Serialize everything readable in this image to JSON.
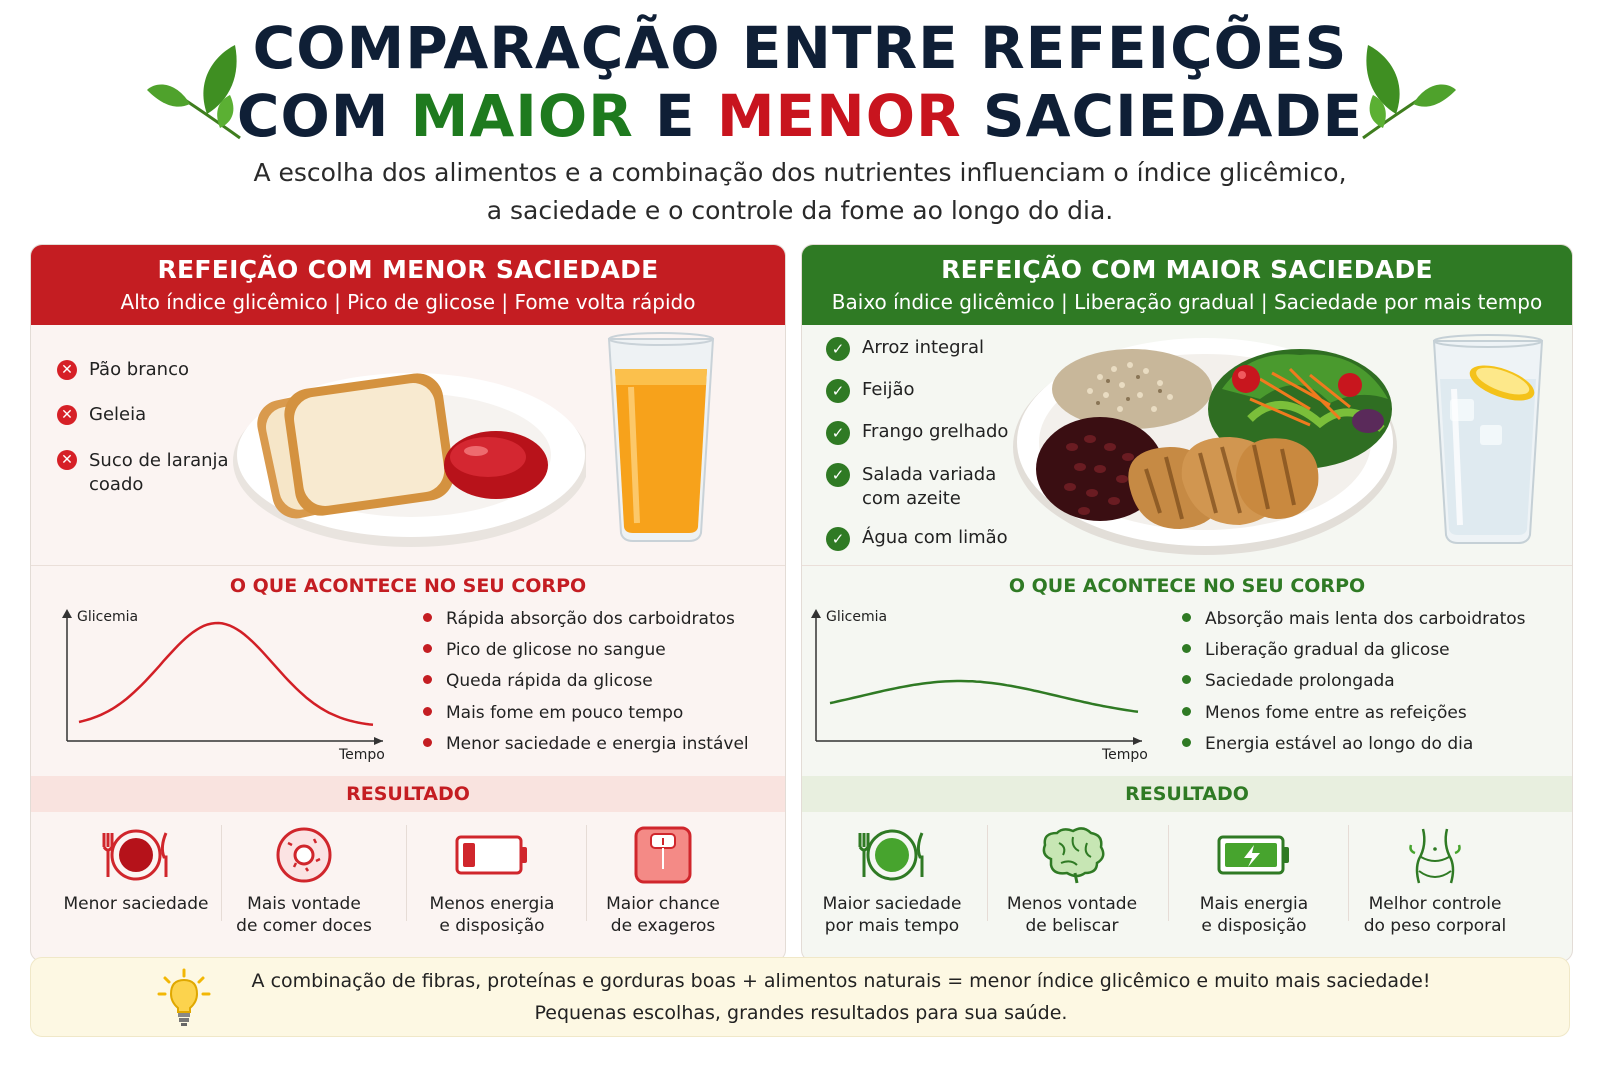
{
  "title": {
    "line1": "COMPARAÇÃO ENTRE REFEIÇÕES",
    "line2_prefix": "COM ",
    "line2_green": "MAIOR",
    "line2_mid": " E ",
    "line2_red": "MENOR",
    "line2_suffix": " SACIEDADE"
  },
  "subtitle": {
    "line1": "A escolha dos alimentos e a combinação dos nutrientes influenciam o índice glicêmico,",
    "line2": "a saciedade e o controle da fome ao longo do dia."
  },
  "colors": {
    "red": "#c41d22",
    "green": "#2f7a24",
    "navy": "#0f1f36"
  },
  "low_satiety": {
    "header": "REFEIÇÃO COM MENOR SACIEDADE",
    "subheader": "Alto índice glicêmico | Pico de glicose | Fome volta rápido",
    "foods": [
      {
        "icon": "x-icon",
        "label_1": "Pão branco",
        "label_2": ""
      },
      {
        "icon": "x-icon",
        "label_1": "Geleia",
        "label_2": ""
      },
      {
        "icon": "x-icon",
        "label_1": "Suco de laranja",
        "label_2": "coado"
      }
    ],
    "body_title": "O QUE ACONTECE NO SEU CORPO",
    "graph": {
      "ylabel": "Glicemia",
      "xlabel": "Tempo",
      "shape": "sharp-peak"
    },
    "effects": [
      "Rápida absorção dos carboidratos",
      "Pico de glicose no sangue",
      "Queda rápida da glicose",
      "Mais fome em pouco tempo",
      "Menor saciedade e energia instável"
    ],
    "result_title": "RESULTADO",
    "results": [
      {
        "icon": "plate-cutlery-icon",
        "line1": "Menor saciedade",
        "line2": ""
      },
      {
        "icon": "donut-icon",
        "line1": "Mais vontade",
        "line2": "de comer doces"
      },
      {
        "icon": "low-battery-icon",
        "line1": "Menos energia",
        "line2": "e disposição"
      },
      {
        "icon": "scale-icon",
        "line1": "Maior chance",
        "line2": "de exageros"
      }
    ]
  },
  "high_satiety": {
    "header": "REFEIÇÃO COM MAIOR SACIEDADE",
    "subheader": "Baixo índice glicêmico | Liberação gradual | Saciedade por mais tempo",
    "foods": [
      {
        "icon": "check-icon",
        "label_1": "Arroz integral",
        "label_2": ""
      },
      {
        "icon": "check-icon",
        "label_1": "Feijão",
        "label_2": ""
      },
      {
        "icon": "check-icon",
        "label_1": "Frango grelhado",
        "label_2": ""
      },
      {
        "icon": "check-icon",
        "label_1": "Salada variada",
        "label_2": "com azeite"
      },
      {
        "icon": "check-icon",
        "label_1": "Água com limão",
        "label_2": ""
      }
    ],
    "body_title": "O QUE ACONTECE NO SEU CORPO",
    "graph": {
      "ylabel": "Glicemia",
      "xlabel": "Tempo",
      "shape": "gentle-curve"
    },
    "effects": [
      "Absorção mais lenta dos carboidratos",
      "Liberação gradual da glicose",
      "Saciedade prolongada",
      "Menos fome entre as refeições",
      "Energia estável ao longo do dia"
    ],
    "result_title": "RESULTADO",
    "results": [
      {
        "icon": "plate-cutlery-icon",
        "line1": "Maior saciedade",
        "line2": "por mais tempo"
      },
      {
        "icon": "brain-icon",
        "line1": "Menos vontade",
        "line2": "de beliscar"
      },
      {
        "icon": "charged-battery-icon",
        "line1": "Mais energia",
        "line2": "e disposição"
      },
      {
        "icon": "waist-icon",
        "line1": "Melhor controle",
        "line2": "do peso corporal"
      }
    ]
  },
  "footer": {
    "icon": "lightbulb-icon",
    "line1": "A combinação de fibras, proteínas e gorduras boas + alimentos naturais = menor índice glicêmico e muito mais saciedade!",
    "line2": "Pequenas escolhas, grandes resultados para sua saúde."
  }
}
